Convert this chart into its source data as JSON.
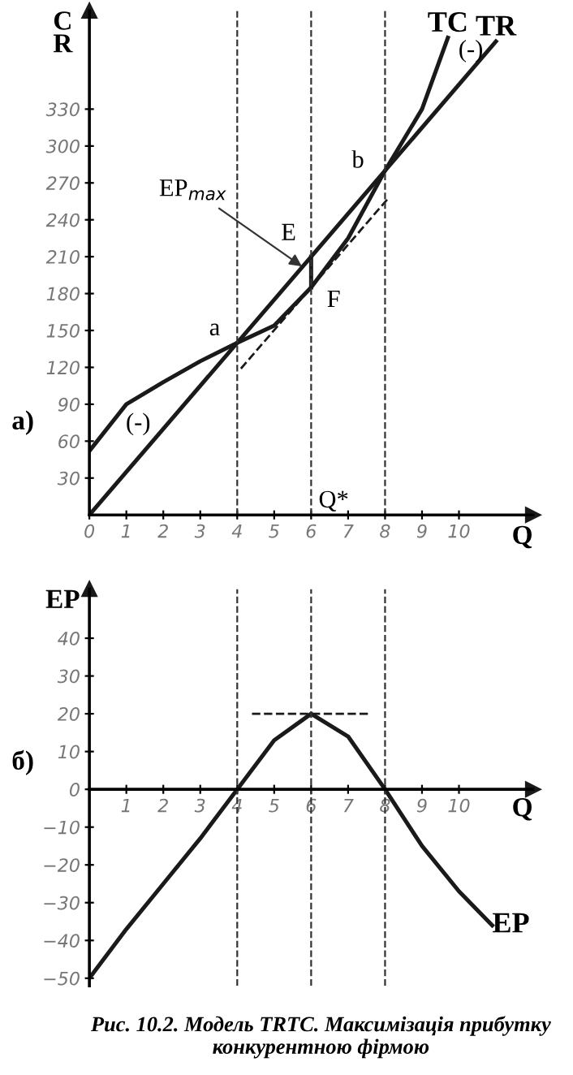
{
  "chart_data": [
    {
      "type": "line",
      "xlabel": "Q",
      "ylabel": "C\nR",
      "xlim": [
        0,
        12
      ],
      "ylim": [
        0,
        410
      ],
      "xticks": [
        0,
        1,
        2,
        3,
        4,
        5,
        6,
        7,
        8,
        9,
        10
      ],
      "yticks": [
        30,
        60,
        90,
        120,
        150,
        180,
        210,
        240,
        270,
        300,
        330
      ],
      "grid": false,
      "legend": false,
      "series": [
        {
          "name": "TC",
          "color": "#1a1a1a",
          "x": [
            0,
            1,
            2,
            3,
            4,
            5,
            6,
            7,
            8,
            9,
            9.7
          ],
          "values": [
            52,
            90,
            108,
            125,
            140,
            154,
            185,
            225,
            280,
            330,
            388
          ]
        },
        {
          "name": "TR",
          "color": "#1a1a1a",
          "x": [
            0,
            11
          ],
          "values": [
            0,
            385
          ]
        },
        {
          "color": "#1a1a1a",
          "x": [
            4.1,
            8.1
          ],
          "values": [
            119,
            258
          ],
          "line_style": "dashed"
        },
        {
          "color": "#1a1a1a",
          "x": [
            6,
            6
          ],
          "values": [
            185,
            210
          ]
        }
      ],
      "ref_lines": [
        {
          "axis": "x",
          "value": 4,
          "line_style": "dashed"
        },
        {
          "axis": "x",
          "value": 6,
          "line_style": "dashed"
        },
        {
          "axis": "x",
          "value": 8,
          "line_style": "dashed"
        }
      ],
      "annotations": [
        "а)",
        {
          "text": "EP$_{max}$",
          "x": 5.85,
          "y": 200
        },
        {
          "text": "a",
          "x": 4,
          "y": 140
        },
        {
          "text": "b",
          "x": 8,
          "y": 280
        },
        {
          "text": "E",
          "x": 6,
          "y": 210
        },
        {
          "text": "F",
          "x": 6,
          "y": 185
        },
        {
          "text": "Q*",
          "x": 6,
          "y": 0
        },
        "(-)",
        "(-)"
      ]
    },
    {
      "type": "line",
      "xlabel": "Q",
      "ylabel": "EP",
      "xlim": [
        0,
        12
      ],
      "ylim": [
        -52,
        53
      ],
      "xticks": [
        1,
        2,
        3,
        4,
        5,
        6,
        7,
        8,
        9,
        10
      ],
      "yticks": [
        {
          "value": -50,
          "label": "−50"
        },
        {
          "value": -40,
          "label": "−40"
        },
        {
          "value": -30,
          "label": "−30"
        },
        {
          "value": -20,
          "label": "−20"
        },
        {
          "value": -10,
          "label": "−10"
        },
        0,
        10,
        20,
        30,
        40
      ],
      "grid": false,
      "legend": false,
      "series": [
        {
          "name": "EP",
          "color": "#1a1a1a",
          "x": [
            0,
            1,
            2,
            3,
            4,
            5,
            6,
            7,
            8,
            9,
            10,
            10.9
          ],
          "values": [
            -50,
            -37,
            -25,
            -13,
            0,
            13,
            20,
            14,
            0,
            -15,
            -27,
            -36
          ]
        },
        {
          "color": "#1a1a1a",
          "x": [
            4.4,
            7.6
          ],
          "values": [
            20,
            20
          ],
          "line_style": "dashed"
        }
      ],
      "ref_lines": [
        {
          "axis": "x",
          "value": 4,
          "line_style": "dashed"
        },
        {
          "axis": "x",
          "value": 6,
          "line_style": "dashed"
        },
        {
          "axis": "x",
          "value": 8,
          "line_style": "dashed"
        }
      ],
      "annotations": [
        "б)",
        "Рис. 10.2. Модель TRTC. Максимізація прибутку конкурентною фірмою"
      ]
    }
  ]
}
